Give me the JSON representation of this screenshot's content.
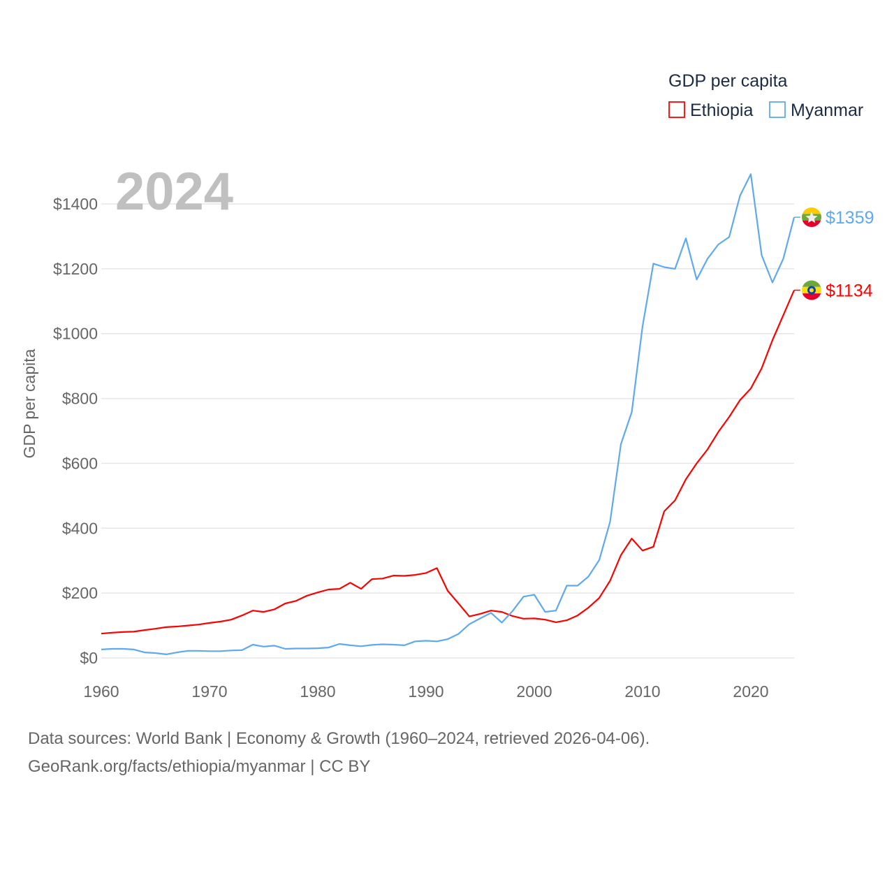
{
  "chart_data": {
    "type": "line",
    "title": "GDP per capita",
    "xlabel": "",
    "ylabel": "GDP per capita",
    "year_label": "2024",
    "xlim": [
      1960,
      2024
    ],
    "ylim": [
      0,
      1500
    ],
    "x_ticks": [
      "1960",
      "1970",
      "1980",
      "1990",
      "2000",
      "2010",
      "2020"
    ],
    "y_ticks": [
      "$0",
      "$200",
      "$400",
      "$600",
      "$800",
      "$1000",
      "$1200",
      "$1400"
    ],
    "y_tick_values": [
      0,
      200,
      400,
      600,
      800,
      1000,
      1200,
      1400
    ],
    "legend_title": "GDP per capita",
    "legend_position": "top-right",
    "grid": true,
    "start_year": 1960,
    "series": [
      {
        "name": "Ethiopia",
        "color": "#ff0000",
        "end_label": "$1134",
        "flag": "ethiopia-flag",
        "values": [
          75,
          78,
          80,
          81,
          86,
          90,
          95,
          97,
          100,
          103,
          108,
          112,
          118,
          131,
          146,
          142,
          150,
          168,
          176,
          192,
          202,
          211,
          213,
          232,
          213,
          243,
          245,
          254,
          253,
          256,
          262,
          277,
          207,
          168,
          128,
          136,
          146,
          142,
          129,
          121,
          122,
          118,
          110,
          116,
          131,
          155,
          185,
          238,
          317,
          368,
          331,
          343,
          452,
          486,
          551,
          600,
          643,
          697,
          743,
          795,
          831,
          893,
          980,
          1057,
          1134
        ]
      },
      {
        "name": "Myanmar",
        "color": "#5ea9ef",
        "end_label": "$1359",
        "flag": "myanmar-flag",
        "values": [
          26,
          28,
          28,
          26,
          17,
          15,
          11,
          17,
          22,
          22,
          21,
          21,
          23,
          24,
          41,
          35,
          38,
          28,
          29,
          29,
          30,
          32,
          43,
          39,
          36,
          40,
          42,
          41,
          39,
          51,
          53,
          51,
          58,
          74,
          104,
          122,
          139,
          109,
          145,
          189,
          195,
          142,
          146,
          223,
          223,
          251,
          302,
          420,
          659,
          758,
          1023,
          1216,
          1205,
          1200,
          1294,
          1167,
          1231,
          1275,
          1298,
          1425,
          1492,
          1242,
          1158,
          1231,
          1359
        ]
      }
    ]
  },
  "footer": {
    "line1": "Data sources: World Bank | Economy & Growth (1960–2024, retrieved 2026-04-06).",
    "line2": "GeoRank.org/facts/ethiopia/myanmar | CC BY"
  }
}
